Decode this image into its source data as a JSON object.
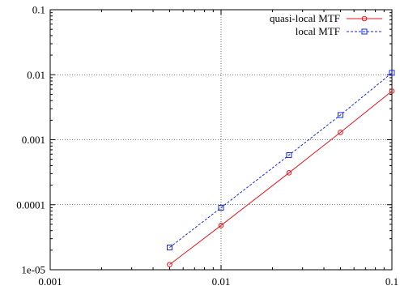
{
  "chart_data": {
    "type": "line",
    "title": "",
    "xlabel": "",
    "ylabel": "",
    "x_scale": "log",
    "y_scale": "log",
    "xlim": [
      0.001,
      0.1
    ],
    "ylim": [
      1e-05,
      0.1
    ],
    "x_ticks": [
      "0.001",
      "0.01",
      "0.1"
    ],
    "y_ticks": [
      "1e-05",
      "0.0001",
      "0.001",
      "0.01",
      "0.1"
    ],
    "grid": true,
    "legend_position": "top-right",
    "series": [
      {
        "name": "quasi-local MTF",
        "color": "#e8141c",
        "marker": "circle",
        "line_style": "solid",
        "x": [
          0.005,
          0.01,
          0.025,
          0.05,
          0.1
        ],
        "y": [
          1.2e-05,
          4.8e-05,
          0.00031,
          0.0013,
          0.0056
        ]
      },
      {
        "name": "local MTF",
        "color": "#1428e8",
        "marker": "square",
        "line_style": "dashed",
        "x": [
          0.005,
          0.01,
          0.025,
          0.05,
          0.1
        ],
        "y": [
          2.2e-05,
          9e-05,
          0.00058,
          0.0024,
          0.0107
        ]
      }
    ]
  }
}
